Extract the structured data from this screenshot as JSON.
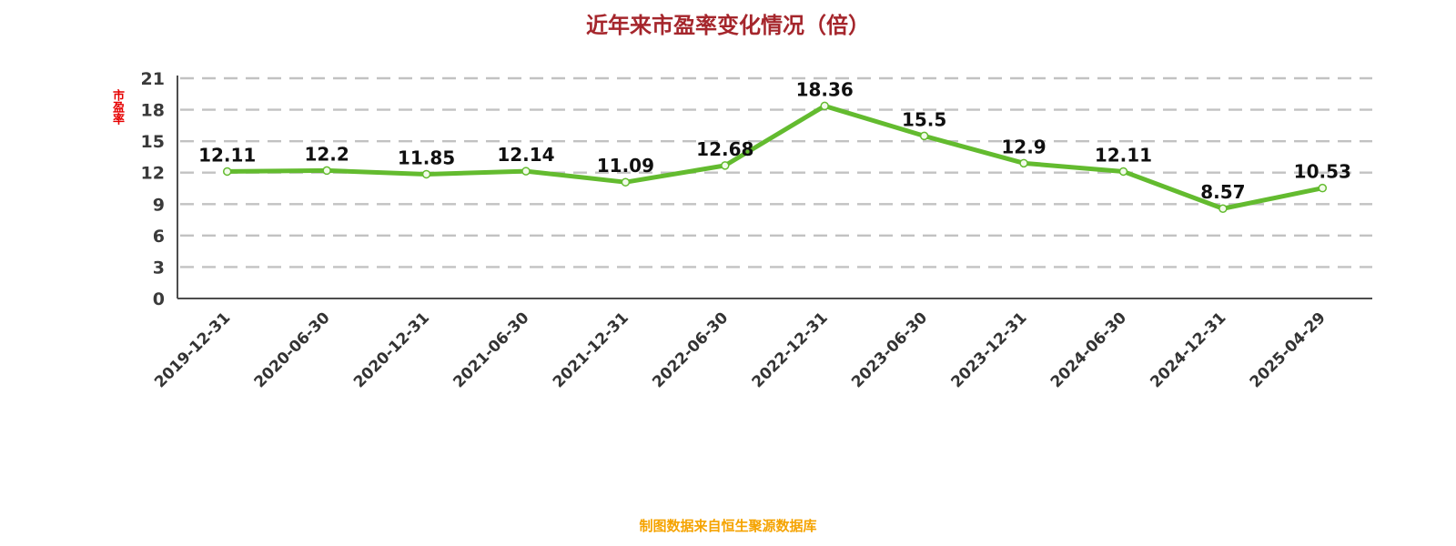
{
  "chart_data": {
    "type": "line",
    "title": "近年来市盈率变化情况（倍）",
    "ylabel": "市盈率",
    "source_note": "制图数据来自恒生聚源数据库",
    "categories": [
      "2019-12-31",
      "2020-06-30",
      "2020-12-31",
      "2021-06-30",
      "2021-12-31",
      "2022-06-30",
      "2022-12-31",
      "2023-06-30",
      "2023-12-31",
      "2024-06-30",
      "2024-12-31",
      "2025-04-29"
    ],
    "values": [
      12.11,
      12.2,
      11.85,
      12.14,
      11.09,
      12.68,
      18.36,
      15.5,
      12.9,
      12.11,
      8.57,
      10.53
    ],
    "ylim": [
      0,
      21
    ],
    "yticks": [
      0,
      3,
      6,
      9,
      12,
      15,
      18,
      21
    ],
    "grid": true,
    "legend": "none",
    "colors": {
      "title": "#A5262C",
      "line": "#63BB2F",
      "marker_fill": "#F2FBEA",
      "grid": "#C2C2C2",
      "axis": "#4D4D4D",
      "tick_label": "#333333",
      "data_label": "#101010",
      "ylabel": "#E60000",
      "source_note": "#F5A300"
    }
  }
}
